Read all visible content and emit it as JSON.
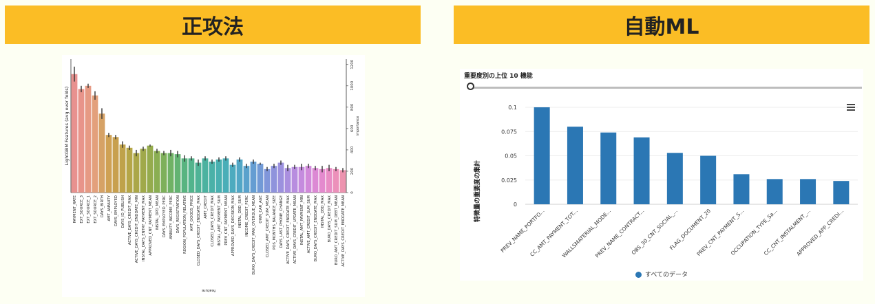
{
  "left": {
    "banner": "正攻法",
    "chart_data": {
      "type": "bar",
      "ylabel": "LightGBM Features (avg over folds)",
      "xlabel": "feature",
      "right_axis_label": "importance",
      "ylim": [
        0,
        1250
      ],
      "yticks": [
        0,
        200,
        400,
        600,
        800,
        1000,
        1200
      ],
      "categories": [
        "PAYMENT_RATE",
        "EXT_SOURCE_3",
        "EXT_SOURCE_1",
        "EXT_SOURCE_2",
        "DAYS_BIRTH",
        "AMT_ANNUITY",
        "DAYS_EMPLOYED",
        "DAYS_ID_PUBLISH",
        "ACTIVE_DAYS_CREDIT_MAX",
        "ACTIVE_DAYS_CREDIT_ENDDATE_MIN",
        "INSTAL_DAYS_ENTRY_PAYMENT_MAX",
        "APPROVED_CNT_PAYMENT_MEAN",
        "INSTAL_DPD_MEAN",
        "DAYS_EMPLOYED_PERC",
        "ANNUITY_INCOME_PERC",
        "DAYS_REGISTRATION",
        "REGION_POPULATION_RELATIVE",
        "AMT_GOODS_PRICE",
        "CLOSED_DAYS_CREDIT_ENDDATE_MAX",
        "AMT_CREDIT",
        "CLOSED_DAYS_CREDIT_MAX",
        "INSTAL_AMT_PAYMENT_SUM",
        "PREV_CNT_PAYMENT_MEAN",
        "APPROVED_DAYS_DECISION_MAX",
        "INSTAL_DBD_SUM",
        "INCOME_CREDIT_PERC",
        "BURO_DAYS_CREDIT_MAX_OVERDUE_MEAN",
        "OWN_CAR_AGE",
        "CLOSED_AMT_CREDIT_SUM_MEAN",
        "POS_MONTHS_BALANCE_SIZE",
        "DAYS_LAST_PHONE_CHANGE",
        "ACTIVE_DAYS_CREDIT_ENDDATE_MAX",
        "ACTIVE_DAYS_CREDIT_UPDATE_MEAN",
        "INSTAL_AMT_PAYMENT_MIN",
        "ACTIVE_AMT_CREDIT_SUM_SUM",
        "BURO_DAYS_CREDIT_ENDDATE_MAX",
        "INSTAL_DBD_MAX",
        "BURO_DAYS_CREDIT_MAX",
        "BURO_AMT_CREDIT_SUM_DEBT_MEAN",
        "ACTIVE_DAYS_CREDIT_ENDDATE_MEAN"
      ],
      "values": [
        1110,
        970,
        1000,
        910,
        740,
        540,
        520,
        450,
        420,
        370,
        410,
        440,
        390,
        370,
        370,
        360,
        320,
        320,
        280,
        320,
        290,
        310,
        320,
        260,
        310,
        250,
        290,
        270,
        220,
        250,
        280,
        230,
        240,
        240,
        250,
        230,
        220,
        230,
        220,
        210
      ],
      "errors": [
        70,
        30,
        20,
        40,
        50,
        20,
        20,
        30,
        20,
        30,
        20,
        10,
        20,
        20,
        30,
        30,
        30,
        20,
        30,
        20,
        20,
        20,
        20,
        20,
        20,
        20,
        20,
        10,
        20,
        20,
        20,
        30,
        20,
        30,
        20,
        20,
        30,
        30,
        20,
        20
      ],
      "colors": [
        "#e8918f",
        "#e8948a",
        "#e69a84",
        "#e3a07c",
        "#d6a266",
        "#cfa154",
        "#c8a04e",
        "#bfa24a",
        "#b5a647",
        "#aba748",
        "#a0a94a",
        "#95ab4d",
        "#8aae52",
        "#7eb05a",
        "#70b265",
        "#63b372",
        "#58b480",
        "#52b48c",
        "#4fb396",
        "#4cb2a0",
        "#4ab1a8",
        "#49b0b0",
        "#4aaeb8",
        "#4dabbf",
        "#52a7c6",
        "#5aa2cc",
        "#659dd2",
        "#729ad6",
        "#8096da",
        "#8f93dc",
        "#9c91de",
        "#aa8fdf",
        "#b88ddf",
        "#c58bde",
        "#d189da",
        "#dc89d4",
        "#e48ace",
        "#e98dc5",
        "#ec90ba",
        "#ed93af"
      ]
    }
  },
  "right": {
    "banner": "自動ML",
    "chart_data": {
      "type": "bar",
      "title": "重要度別の上位 10 機能",
      "ylabel": "特徴量の重要度の集計",
      "ylim": [
        0,
        0.1
      ],
      "yticks": [
        "0",
        "0.025",
        "0.05",
        "0.075",
        "0.1"
      ],
      "categories": [
        "PREV_NAME_PORTFO...",
        "CC_AMT_PAYMENT_TOT...",
        "WALLSMATERIAL_MODE...",
        "PREV_NAME_CONTRACT...",
        "OBS_30_CNT_SOCIAL_...",
        "FLAG_DOCUMENT_20",
        "PREV_CNT_PAYMENT_S...",
        "OCCUPATION_TYPE_Sa...",
        "CC_CNT_INSTALMENT_...",
        "APPROVED_APP_CREDI..."
      ],
      "values": [
        0.1,
        0.08,
        0.074,
        0.069,
        0.053,
        0.05,
        0.031,
        0.026,
        0.026,
        0.024
      ],
      "color": "#2b77b4",
      "legend": "すべてのデータ"
    }
  }
}
